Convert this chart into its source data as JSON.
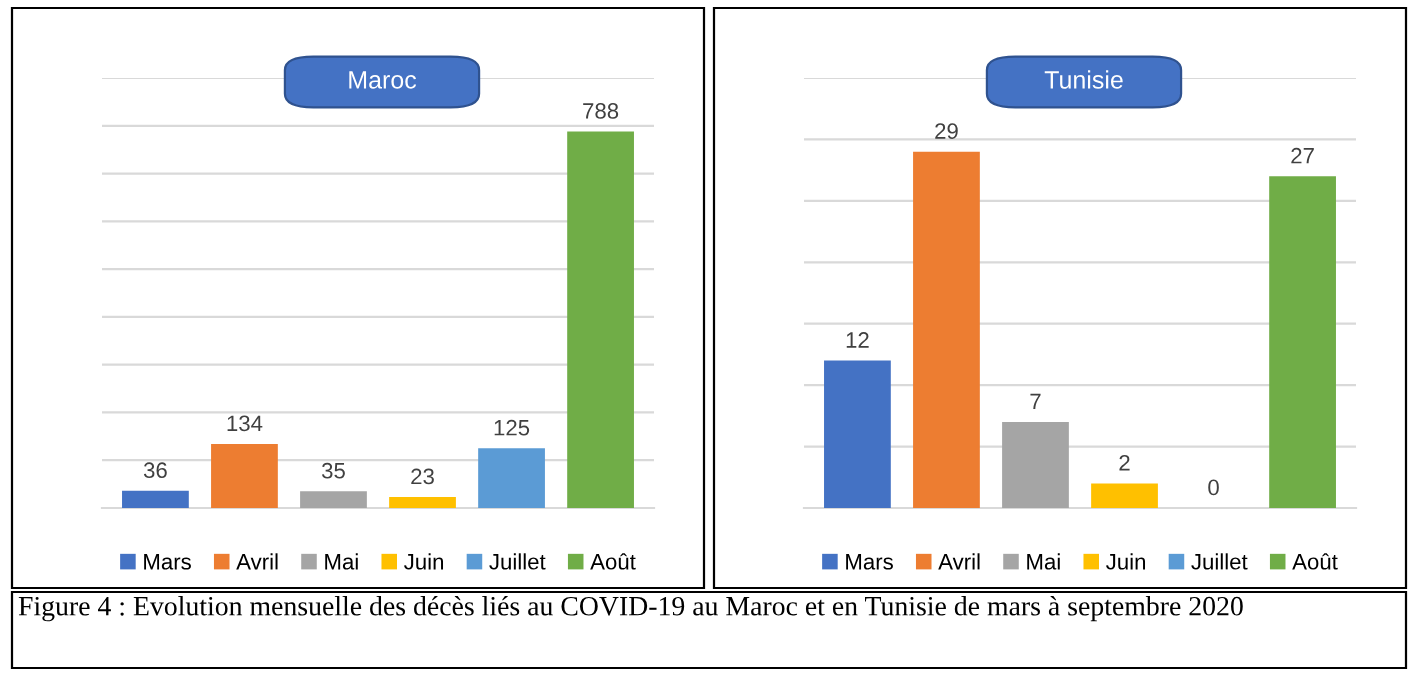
{
  "chart_data": [
    {
      "type": "bar",
      "title": "Maroc",
      "categories": [
        "Mars",
        "Avril",
        "Mai",
        "Juin",
        "Juillet",
        "Août"
      ],
      "values": [
        36,
        134,
        35,
        23,
        125,
        788
      ],
      "colors": [
        "#4472c4",
        "#ed7d31",
        "#a5a5a5",
        "#ffc000",
        "#5b9bd5",
        "#70ad47"
      ],
      "data_labels": true,
      "ylim": [
        0,
        900
      ],
      "yticks": [
        {
          "value": 0,
          "label": null
        },
        {
          "value": 100,
          "label": null
        },
        {
          "value": 200,
          "label": null
        },
        {
          "value": 300,
          "label": null
        },
        {
          "value": 400,
          "label": null
        },
        {
          "value": 500,
          "label": null
        },
        {
          "value": 600,
          "label": null
        },
        {
          "value": 700,
          "label": null
        },
        {
          "value": 800,
          "label": null
        },
        {
          "value": 900,
          "label": null
        }
      ],
      "grid": "y",
      "tick_labels": false,
      "annotations": [
        "Figure 4 : Evolution mensuelle des décès liés au COVID-19 au Maroc et en Tunisie de mars à septembre 2020"
      ]
    },
    {
      "type": "bar",
      "title": "Tunisie",
      "categories": [
        "Mars",
        "Avril",
        "Mai",
        "Juin",
        "Juillet",
        "Août"
      ],
      "values": [
        12,
        29,
        7,
        2,
        0,
        27
      ],
      "colors": [
        "#4472c4",
        "#ed7d31",
        "#a5a5a5",
        "#ffc000",
        "#5b9bd5",
        "#70ad47"
      ],
      "data_labels": true,
      "ylim": [
        0,
        35
      ],
      "yticks": [
        {
          "value": 0,
          "label": null
        },
        {
          "value": 5,
          "label": null
        },
        {
          "value": 10,
          "label": null
        },
        {
          "value": 15,
          "label": null
        },
        {
          "value": 20,
          "label": null
        },
        {
          "value": 25,
          "label": null
        },
        {
          "value": 30,
          "label": null
        },
        {
          "value": 35,
          "label": null
        }
      ],
      "grid": "y",
      "tick_labels": false
    }
  ]
}
